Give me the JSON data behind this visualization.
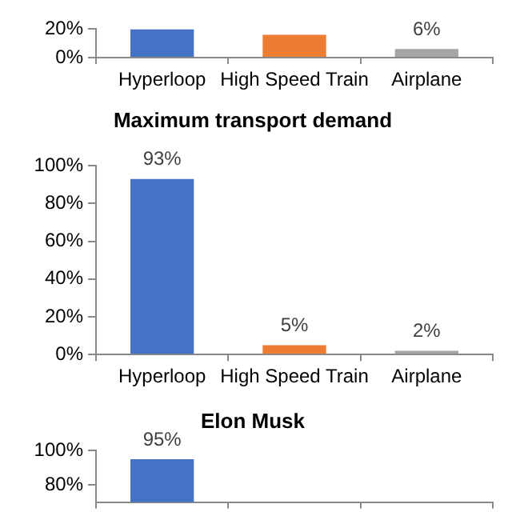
{
  "chart_data": [
    {
      "type": "bar",
      "categories": [
        "Hyperloop",
        "High Speed Train",
        "Airplane"
      ],
      "values": [
        20,
        16,
        6
      ],
      "colors": [
        "#4472c4",
        "#ed7d31",
        "#a5a5a5"
      ],
      "value_labels": [
        null,
        null,
        "6%"
      ],
      "ylim": [
        0,
        20
      ],
      "yticks": [
        {
          "value": 0,
          "label": "0%"
        },
        {
          "value": 20,
          "label": "20%"
        }
      ]
    },
    {
      "type": "bar",
      "title": "Maximum transport demand",
      "categories": [
        "Hyperloop",
        "High Speed Train",
        "Airplane"
      ],
      "values": [
        93,
        5,
        2
      ],
      "colors": [
        "#4472c4",
        "#ed7d31",
        "#a5a5a5"
      ],
      "value_labels": [
        "93%",
        "5%",
        "2%"
      ],
      "ylim": [
        0,
        100
      ],
      "yticks": [
        {
          "value": 0,
          "label": "0%"
        },
        {
          "value": 20,
          "label": "20%"
        },
        {
          "value": 40,
          "label": "40%"
        },
        {
          "value": 60,
          "label": "60%"
        },
        {
          "value": 80,
          "label": "80%"
        },
        {
          "value": 100,
          "label": "100%"
        }
      ]
    },
    {
      "type": "bar",
      "title": "Elon Musk",
      "categories": [
        null,
        null,
        null
      ],
      "values": [
        95,
        null,
        null
      ],
      "colors": [
        "#4472c4",
        "#ed7d31",
        "#a5a5a5"
      ],
      "value_labels": [
        "95%",
        null,
        null
      ],
      "ylim": [
        70,
        100
      ],
      "yticks": [
        {
          "value": 80,
          "label": "80%"
        },
        {
          "value": 100,
          "label": "100%"
        }
      ],
      "tick_labels": "y"
    }
  ]
}
